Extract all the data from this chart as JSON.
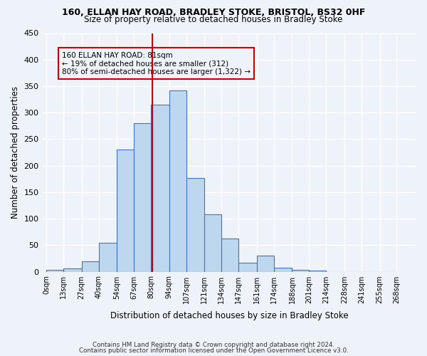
{
  "title_line1": "160, ELLAN HAY ROAD, BRADLEY STOKE, BRISTOL, BS32 0HF",
  "title_line2": "Size of property relative to detached houses in Bradley Stoke",
  "xlabel": "Distribution of detached houses by size in Bradley Stoke",
  "ylabel": "Number of detached properties",
  "bin_labels": [
    "0sqm",
    "13sqm",
    "27sqm",
    "40sqm",
    "54sqm",
    "67sqm",
    "80sqm",
    "94sqm",
    "107sqm",
    "121sqm",
    "134sqm",
    "147sqm",
    "161sqm",
    "174sqm",
    "188sqm",
    "201sqm",
    "214sqm",
    "228sqm",
    "241sqm",
    "255sqm",
    "268sqm"
  ],
  "bar_values": [
    3,
    6,
    20,
    55,
    230,
    280,
    315,
    342,
    177,
    108,
    62,
    17,
    30,
    7,
    4,
    2,
    0,
    0,
    0,
    0
  ],
  "bar_color": "#bdd7ee",
  "bar_edge_color": "#4472c4",
  "vline_x": 81,
  "vline_color": "#cc0000",
  "annotation_title": "160 ELLAN HAY ROAD: 81sqm",
  "annotation_line1": "← 19% of detached houses are smaller (312)",
  "annotation_line2": "80% of semi-detached houses are larger (1,322) →",
  "annotation_box_color": "#cc0000",
  "ylim": [
    0,
    450
  ],
  "yticks": [
    0,
    50,
    100,
    150,
    200,
    250,
    300,
    350,
    400,
    450
  ],
  "footer_line1": "Contains HM Land Registry data © Crown copyright and database right 2024.",
  "footer_line2": "Contains public sector information licensed under the Open Government Licence v3.0.",
  "bg_color": "#eef3fa",
  "grid_color": "#ffffff",
  "bin_width": 13
}
